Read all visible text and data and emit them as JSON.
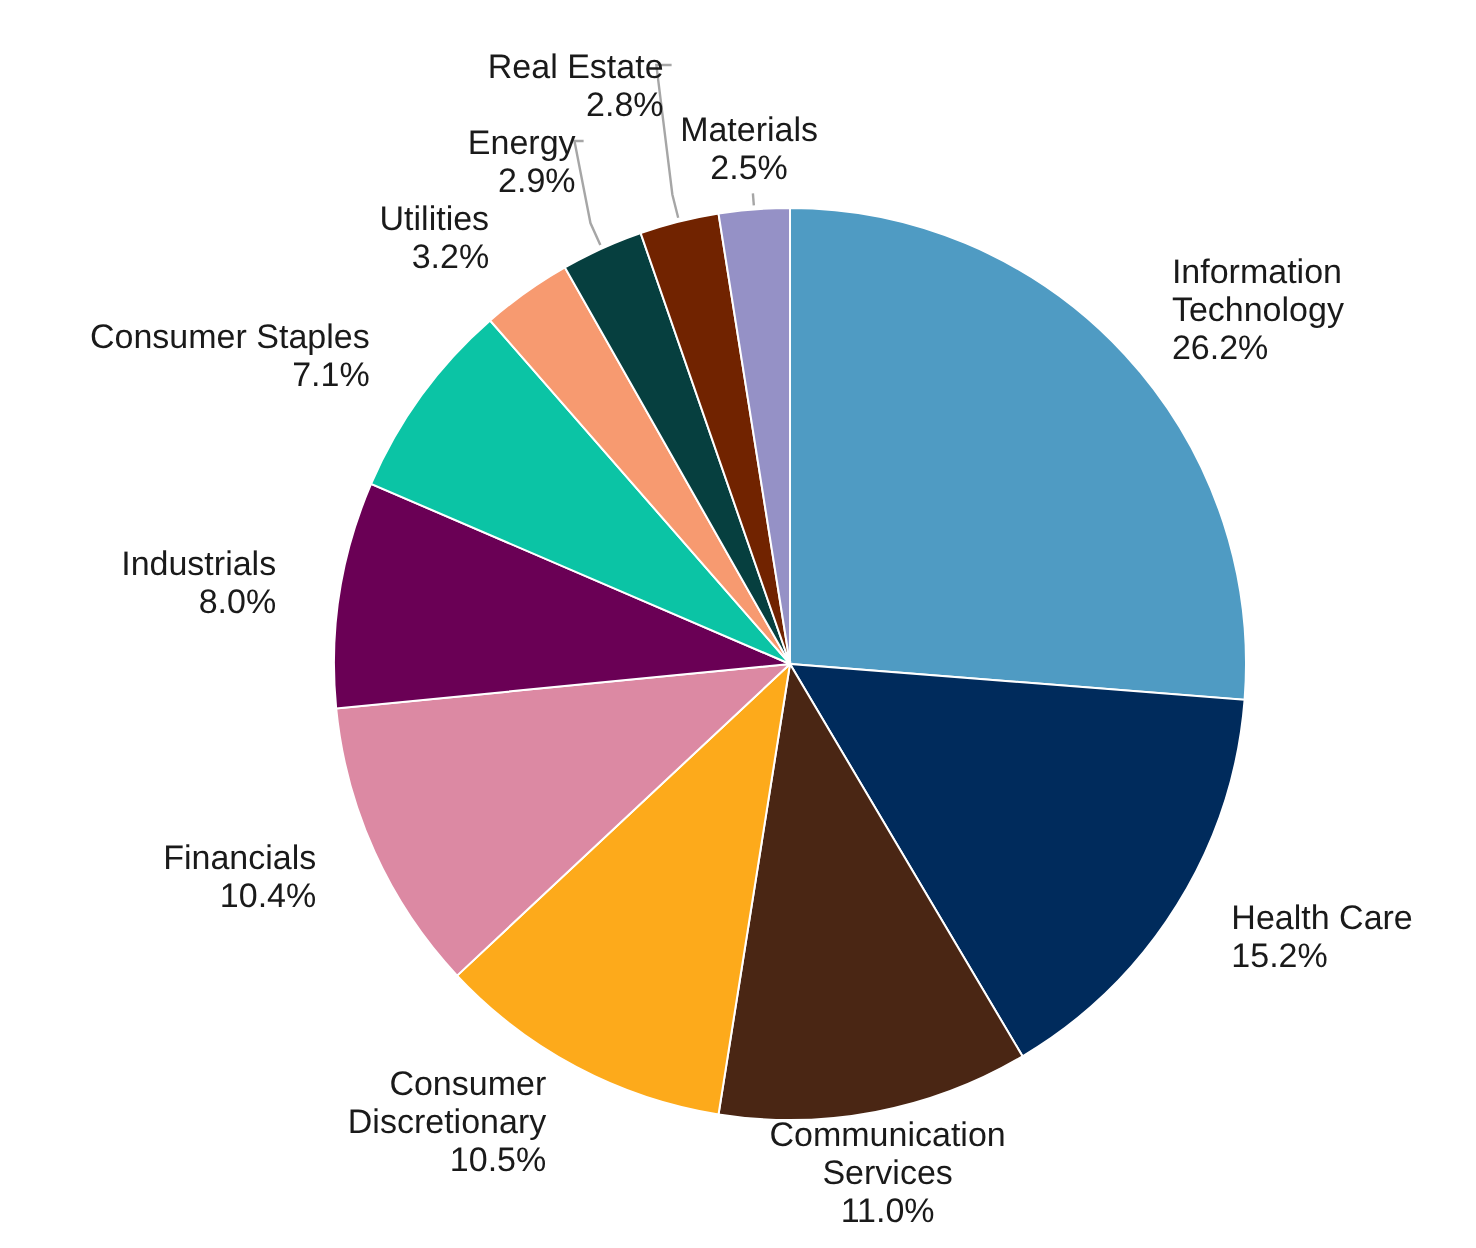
{
  "chart_data": {
    "type": "pie",
    "categories": [
      "Information Technology",
      "Health Care",
      "Communication Services",
      "Consumer Discretionary",
      "Financials",
      "Industrials",
      "Consumer Staples",
      "Utilities",
      "Energy",
      "Real Estate",
      "Materials"
    ],
    "values": [
      26.2,
      15.2,
      11.0,
      10.5,
      10.4,
      8.0,
      7.1,
      3.2,
      2.9,
      2.8,
      2.5
    ],
    "colors": [
      "#4f9bc3",
      "#002b5c",
      "#4a2614",
      "#fdaa1b",
      "#dc89a3",
      "#6a0055",
      "#0bc4a5",
      "#f79a70",
      "#063f3f",
      "#712300",
      "#9591c6"
    ],
    "value_labels": [
      "26.2%",
      "15.2%",
      "11.0%",
      "10.5%",
      "10.4%",
      "8.0%",
      "7.1%",
      "3.2%",
      "2.9%",
      "2.8%",
      "2.5%"
    ]
  }
}
